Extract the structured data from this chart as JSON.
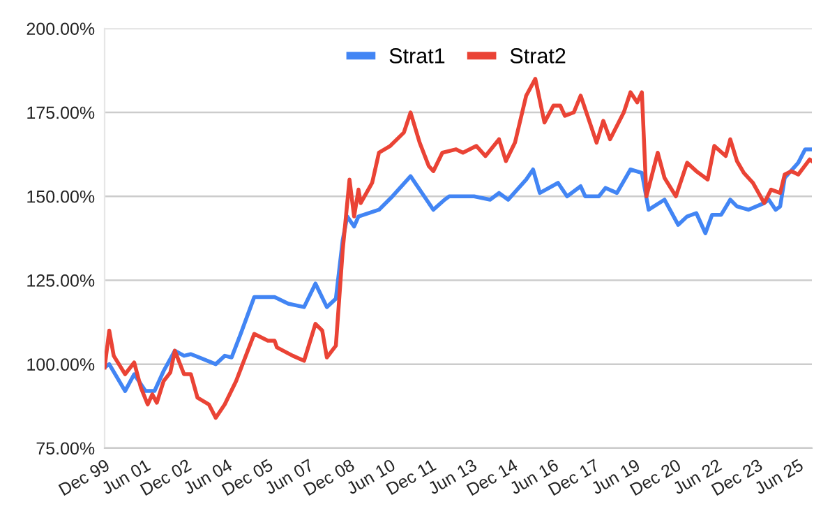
{
  "chart_data": {
    "type": "line",
    "ylim": [
      75,
      200
    ],
    "yticks": [
      {
        "value": 75,
        "label": "75.00%"
      },
      {
        "value": 100,
        "label": "100.00%"
      },
      {
        "value": 125,
        "label": "125.00%"
      },
      {
        "value": 150,
        "label": "150.00%"
      },
      {
        "value": 175,
        "label": "175.00%"
      },
      {
        "value": 200,
        "label": "200.00%"
      }
    ],
    "xlim": [
      "1999-12",
      "2025-12"
    ],
    "xticks": [
      {
        "value": "1999-12",
        "label": "Dec 99"
      },
      {
        "value": "2001-06",
        "label": "Jun 01"
      },
      {
        "value": "2002-12",
        "label": "Dec 02"
      },
      {
        "value": "2004-06",
        "label": "Jun 04"
      },
      {
        "value": "2005-12",
        "label": "Dec 05"
      },
      {
        "value": "2007-06",
        "label": "Jun 07"
      },
      {
        "value": "2008-12",
        "label": "Dec 08"
      },
      {
        "value": "2010-06",
        "label": "Jun 10"
      },
      {
        "value": "2011-12",
        "label": "Dec 11"
      },
      {
        "value": "2013-06",
        "label": "Jun 13"
      },
      {
        "value": "2014-12",
        "label": "Dec 14"
      },
      {
        "value": "2016-06",
        "label": "Jun 16"
      },
      {
        "value": "2017-12",
        "label": "Dec 17"
      },
      {
        "value": "2019-06",
        "label": "Jun 19"
      },
      {
        "value": "2020-12",
        "label": "Dec 20"
      },
      {
        "value": "2022-06",
        "label": "Jun 22"
      },
      {
        "value": "2023-12",
        "label": "Dec 23"
      },
      {
        "value": "2025-06",
        "label": "Jun 25"
      }
    ],
    "grid": "y",
    "legend": "top",
    "line_style": "solid",
    "marker": "none",
    "series": [
      {
        "name": "Strat1",
        "color": "#4285f4",
        "x": [
          "1999-12",
          "2000-02",
          "2000-09",
          "2001-01",
          "2001-06",
          "2001-10",
          "2002-02",
          "2002-07",
          "2002-11",
          "2003-02",
          "2004-01",
          "2004-05",
          "2004-08",
          "2004-12",
          "2005-06",
          "2006-03",
          "2006-09",
          "2007-04",
          "2007-09",
          "2008-02",
          "2008-06",
          "2008-09",
          "2008-11",
          "2009-02",
          "2009-04",
          "2010-01",
          "2010-07",
          "2011-03",
          "2011-10",
          "2012-01",
          "2012-06",
          "2012-08",
          "2013-07",
          "2014-02",
          "2014-06",
          "2014-10",
          "2015-06",
          "2015-09",
          "2015-12",
          "2016-08",
          "2016-12",
          "2017-06",
          "2017-08",
          "2018-02",
          "2018-05",
          "2018-10",
          "2019-04",
          "2019-09",
          "2019-12",
          "2020-07",
          "2021-01",
          "2021-05",
          "2021-09",
          "2022-01",
          "2022-04",
          "2022-08",
          "2022-12",
          "2023-03",
          "2023-08",
          "2024-03",
          "2024-05",
          "2024-08",
          "2024-10",
          "2024-12",
          "2025-06",
          "2025-09",
          "2025-12"
        ],
        "values": [
          99,
          100,
          92,
          97,
          92,
          92,
          98,
          104,
          102.5,
          103,
          100,
          102.5,
          102,
          109,
          120,
          120,
          118,
          117,
          124,
          117,
          119.5,
          137,
          144,
          141,
          144,
          146,
          150,
          156,
          149,
          146,
          149,
          150,
          150,
          149,
          151,
          149,
          155,
          158,
          151,
          154,
          150,
          153,
          150,
          150,
          152.5,
          151,
          158,
          157,
          146,
          149,
          141.5,
          144,
          145,
          139,
          144.5,
          144.5,
          149,
          147,
          146,
          148,
          149,
          146,
          147,
          155.5,
          160,
          164,
          164
        ]
      },
      {
        "name": "Strat2",
        "color": "#ea4335",
        "x": [
          "1999-12",
          "2000-02",
          "2000-04",
          "2000-09",
          "2001-01",
          "2001-04",
          "2001-07",
          "2001-09",
          "2001-11",
          "2002-02",
          "2002-05",
          "2002-07",
          "2002-11",
          "2003-02",
          "2003-05",
          "2003-10",
          "2004-01",
          "2004-05",
          "2004-10",
          "2005-06",
          "2005-12",
          "2006-03",
          "2006-04",
          "2006-11",
          "2007-04",
          "2007-09",
          "2007-12",
          "2008-02",
          "2008-06",
          "2008-09",
          "2008-12",
          "2009-02",
          "2009-04",
          "2009-05",
          "2009-10",
          "2010-01",
          "2010-06",
          "2010-12",
          "2011-03",
          "2011-07",
          "2011-11",
          "2012-01",
          "2012-05",
          "2012-11",
          "2013-02",
          "2013-08",
          "2013-12",
          "2014-06",
          "2014-09",
          "2015-01",
          "2015-06",
          "2015-10",
          "2016-02",
          "2016-06",
          "2016-09",
          "2016-11",
          "2017-03",
          "2017-06",
          "2017-09",
          "2018-01",
          "2018-04",
          "2018-07",
          "2019-01",
          "2019-04",
          "2019-07",
          "2019-09",
          "2019-11",
          "2020-04",
          "2020-07",
          "2020-12",
          "2021-05",
          "2021-09",
          "2022-02",
          "2022-05",
          "2022-10",
          "2022-12",
          "2023-03",
          "2023-06",
          "2023-10",
          "2024-03",
          "2024-06",
          "2024-10",
          "2024-12",
          "2025-03",
          "2025-06",
          "2025-11",
          "2025-12"
        ],
        "values": [
          99,
          110,
          102.5,
          97,
          100.5,
          93,
          88,
          91,
          88.5,
          95,
          97.5,
          104,
          97,
          97,
          90,
          88,
          84,
          88,
          95,
          109,
          107,
          107,
          105,
          102.5,
          101,
          112,
          110,
          102,
          105.5,
          134,
          155,
          144,
          152,
          148,
          154,
          163,
          165,
          169,
          175,
          166,
          159,
          157.5,
          163,
          164,
          163,
          165,
          162,
          167,
          160.5,
          166,
          180,
          185,
          172,
          177,
          177,
          174,
          175,
          180,
          174,
          166,
          172.5,
          167,
          175,
          181,
          178,
          181,
          150,
          163,
          155.5,
          150,
          160,
          157.5,
          155,
          165,
          162,
          167,
          160.5,
          157,
          154,
          148,
          152,
          151,
          156.5,
          157.5,
          156.5,
          161,
          160.5
        ]
      }
    ]
  }
}
